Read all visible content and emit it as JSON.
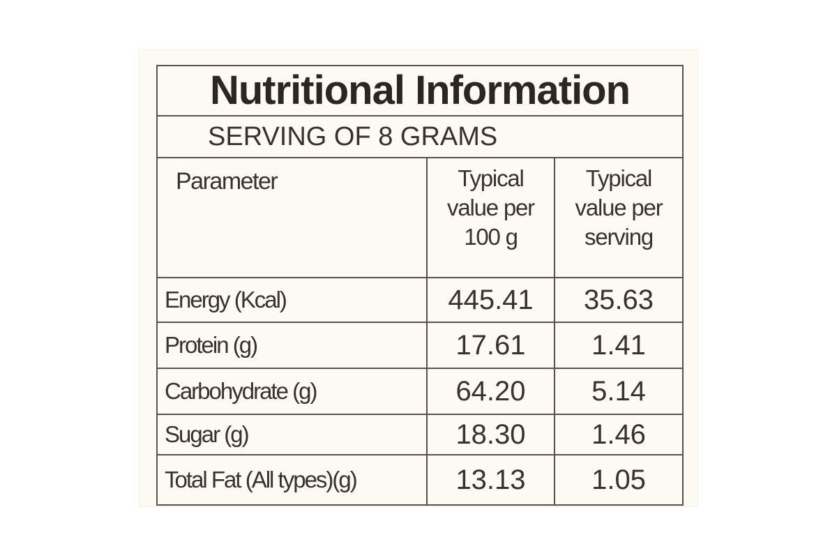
{
  "label": {
    "title": "Nutritional Information",
    "subtitle": "SERVING OF 8 GRAMS",
    "headers": {
      "parameter": "Parameter",
      "per_100g": [
        "Typical",
        "value per",
        "100 g"
      ],
      "per_serving": [
        "Typical",
        "value per",
        "serving"
      ]
    },
    "rows": [
      {
        "parameter": "Energy (Kcal)",
        "per_100g": "445.41",
        "per_serving": "35.63"
      },
      {
        "parameter": "Protein (g)",
        "per_100g": "17.61",
        "per_serving": "1.41"
      },
      {
        "parameter": "Carbohydrate (g)",
        "per_100g": "64.20",
        "per_serving": "5.14"
      },
      {
        "parameter": "Sugar (g)",
        "per_100g": "18.30",
        "per_serving": "1.46"
      },
      {
        "parameter": "Total Fat (All types)(g)",
        "per_100g": "13.13",
        "per_serving": "1.05"
      }
    ]
  }
}
